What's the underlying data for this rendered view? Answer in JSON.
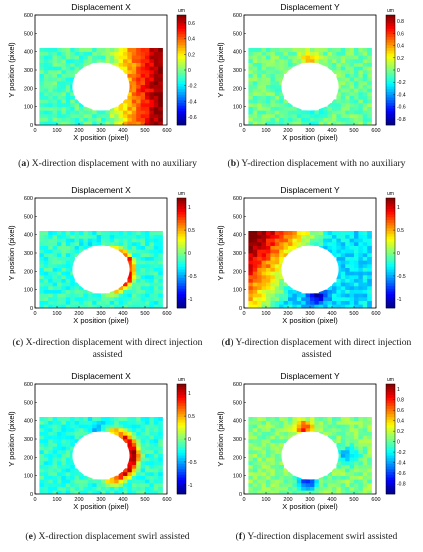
{
  "figure": {
    "panels": [
      {
        "id": "a",
        "title": "Displacement X",
        "xlabel": "X position (pixel)",
        "ylabel": "Y position (pixel)",
        "unit": "um",
        "caption_label": "a",
        "caption_text": "X-direction displacement with no auxiliary"
      },
      {
        "id": "b",
        "title": "Displacement Y",
        "xlabel": "X position (pixel)",
        "ylabel": "Y position (pixel)",
        "unit": "um",
        "caption_label": "b",
        "caption_text": "Y-direction displacement with no auxiliary"
      },
      {
        "id": "c",
        "title": "Displacement X",
        "xlabel": "X position (pixel)",
        "ylabel": "Y position (pixel)",
        "unit": "um",
        "caption_label": "c",
        "caption_text": "X-direction displacement with direct injection assisted"
      },
      {
        "id": "d",
        "title": "Displacement Y",
        "xlabel": "X position (pixel)",
        "ylabel": "Y position (pixel)",
        "unit": "um",
        "caption_label": "d",
        "caption_text": "Y-direction displacement with direct injection assisted"
      },
      {
        "id": "e",
        "title": "Displacement X",
        "xlabel": "X position (pixel)",
        "ylabel": "Y position (pixel)",
        "unit": "um",
        "caption_label": "e",
        "caption_text": "X-direction displacement swirl assisted"
      },
      {
        "id": "f",
        "title": "Displacement Y",
        "xlabel": "X position (pixel)",
        "ylabel": "Y position (pixel)",
        "unit": "um",
        "caption_label": "f",
        "caption_text": "Y-direction displacement swirl assisted"
      }
    ]
  },
  "chart_data": [
    {
      "type": "heatmap",
      "title": "Displacement X",
      "xlabel": "X position (pixel)",
      "ylabel": "Y position (pixel)",
      "xlim": [
        0,
        600
      ],
      "ylim": [
        0,
        600
      ],
      "x_ticks": [
        "0",
        "100",
        "200",
        "300",
        "400",
        "500",
        "600"
      ],
      "y_ticks": [
        "0",
        "100",
        "200",
        "300",
        "400",
        "500",
        "600"
      ],
      "colorbar_unit": "um",
      "colorbar_ticks": [
        -0.6,
        -0.4,
        -0.2,
        0,
        0.2,
        0.4,
        0.6
      ],
      "colorbar_range": [
        -0.7,
        0.7
      ],
      "data_region": {
        "x": [
          20,
          580
        ],
        "y": [
          0,
          420
        ]
      },
      "hole": {
        "cx": 300,
        "cy": 210,
        "r": 130
      }
    },
    {
      "type": "heatmap",
      "title": "Displacement Y",
      "xlabel": "X position (pixel)",
      "ylabel": "Y position (pixel)",
      "xlim": [
        0,
        600
      ],
      "ylim": [
        0,
        600
      ],
      "x_ticks": [
        "0",
        "100",
        "200",
        "300",
        "400",
        "500",
        "600"
      ],
      "y_ticks": [
        "0",
        "100",
        "200",
        "300",
        "400",
        "500",
        "600"
      ],
      "colorbar_unit": "um",
      "colorbar_ticks": [
        -0.8,
        -0.6,
        -0.4,
        -0.2,
        0,
        0.2,
        0.4,
        0.6,
        0.8
      ],
      "colorbar_range": [
        -0.9,
        0.9
      ],
      "data_region": {
        "x": [
          20,
          580
        ],
        "y": [
          0,
          420
        ]
      },
      "hole": {
        "cx": 300,
        "cy": 210,
        "r": 130
      }
    },
    {
      "type": "heatmap",
      "title": "Displacement X",
      "xlabel": "X position (pixel)",
      "ylabel": "Y position (pixel)",
      "xlim": [
        0,
        600
      ],
      "ylim": [
        0,
        600
      ],
      "x_ticks": [
        "0",
        "100",
        "200",
        "300",
        "400",
        "500",
        "600"
      ],
      "y_ticks": [
        "0",
        "100",
        "200",
        "300",
        "400",
        "500",
        "600"
      ],
      "colorbar_unit": "um",
      "colorbar_ticks": [
        -1,
        -0.5,
        0,
        0.5,
        1
      ],
      "colorbar_range": [
        -1.2,
        1.2
      ],
      "data_region": {
        "x": [
          20,
          580
        ],
        "y": [
          0,
          420
        ]
      },
      "hole": {
        "cx": 300,
        "cy": 210,
        "r": 130
      }
    },
    {
      "type": "heatmap",
      "title": "Displacement Y",
      "xlabel": "X position (pixel)",
      "ylabel": "Y position (pixel)",
      "xlim": [
        0,
        600
      ],
      "ylim": [
        0,
        600
      ],
      "x_ticks": [
        "0",
        "100",
        "200",
        "300",
        "400",
        "500",
        "600"
      ],
      "y_ticks": [
        "0",
        "100",
        "200",
        "300",
        "400",
        "500",
        "600"
      ],
      "colorbar_unit": "um",
      "colorbar_ticks": [
        -1,
        -0.5,
        0,
        0.5,
        1
      ],
      "colorbar_range": [
        -1.2,
        1.2
      ],
      "data_region": {
        "x": [
          20,
          580
        ],
        "y": [
          0,
          420
        ]
      },
      "hole": {
        "cx": 300,
        "cy": 210,
        "r": 130
      }
    },
    {
      "type": "heatmap",
      "title": "Displacement X",
      "xlabel": "X position (pixel)",
      "ylabel": "Y position (pixel)",
      "xlim": [
        0,
        600
      ],
      "ylim": [
        0,
        600
      ],
      "x_ticks": [
        "0",
        "100",
        "200",
        "300",
        "400",
        "500",
        "600"
      ],
      "y_ticks": [
        "0",
        "100",
        "200",
        "300",
        "400",
        "500",
        "600"
      ],
      "colorbar_unit": "um",
      "colorbar_ticks": [
        -1,
        -0.5,
        0,
        0.5,
        1
      ],
      "colorbar_range": [
        -1.2,
        1.2
      ],
      "data_region": {
        "x": [
          20,
          580
        ],
        "y": [
          0,
          420
        ]
      },
      "hole": {
        "cx": 300,
        "cy": 210,
        "r": 130
      }
    },
    {
      "type": "heatmap",
      "title": "Displacement Y",
      "xlabel": "X position (pixel)",
      "ylabel": "Y position (pixel)",
      "xlim": [
        0,
        600
      ],
      "ylim": [
        0,
        600
      ],
      "x_ticks": [
        "0",
        "100",
        "200",
        "300",
        "400",
        "500",
        "600"
      ],
      "y_ticks": [
        "0",
        "100",
        "200",
        "300",
        "400",
        "500",
        "600"
      ],
      "colorbar_unit": "um",
      "colorbar_ticks": [
        -0.8,
        -0.6,
        -0.4,
        -0.2,
        0,
        0.2,
        0.4,
        0.6,
        0.8,
        1
      ],
      "colorbar_range": [
        -1.0,
        1.1
      ],
      "data_region": {
        "x": [
          20,
          580
        ],
        "y": [
          0,
          420
        ]
      },
      "hole": {
        "cx": 300,
        "cy": 210,
        "r": 130
      }
    }
  ]
}
